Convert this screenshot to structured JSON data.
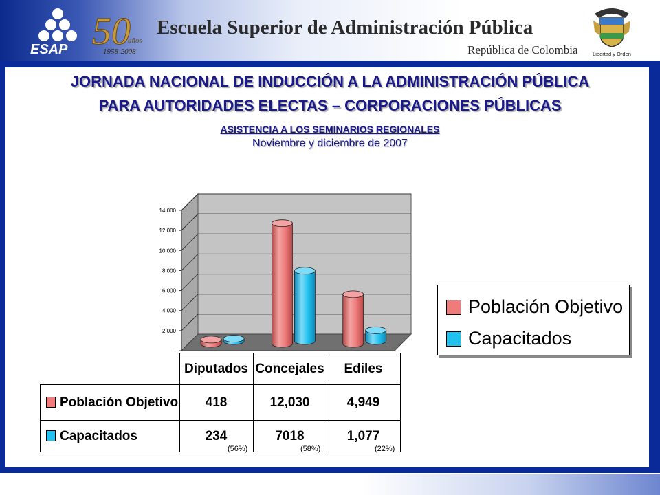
{
  "header": {
    "title": "Escuela Superior de Administración Pública",
    "subtitle": "República de Colombia",
    "logo_text": "ESAP",
    "logo_years": "1958-2008",
    "logo_anniversary": "50",
    "logo_word": "años",
    "seal_caption": "Libertad y Orden"
  },
  "slide": {
    "title_line1": "JORNADA NACIONAL DE INDUCCIÓN A LA ADMINISTRACIÓN PÚBLICA",
    "title_line2": "PARA AUTORIDADES ELECTAS – CORPORACIONES PÚBLICAS",
    "subtitle": "ASISTENCIA A LOS SEMINARIOS REGIONALES",
    "date": "Noviembre y diciembre de 2007"
  },
  "colors": {
    "poblacion": "#ef7b7b",
    "capacitados": "#22c2f0",
    "frame": "#0a2a9a",
    "title": "#1a1a8c"
  },
  "chart_data": {
    "type": "bar",
    "categories": [
      "Diputados",
      "Concejales",
      "Ediles"
    ],
    "series": [
      {
        "name": "Población Objetivo",
        "values": [
          418,
          12030,
          4949
        ]
      },
      {
        "name": "Capacitados",
        "values": [
          234,
          7018,
          1077
        ]
      }
    ],
    "ylim": [
      0,
      14000
    ],
    "yticks": [
      0,
      2000,
      4000,
      6000,
      8000,
      10000,
      12000,
      14000
    ],
    "ytick_labels": [
      "-",
      "2,000",
      "4,000",
      "6,000",
      "8,000",
      "10,000",
      "12,000",
      "14,000"
    ],
    "grid": true,
    "legend_position": "right"
  },
  "table": {
    "headers": [
      "Diputados",
      "Concejales",
      "Ediles"
    ],
    "rows": [
      {
        "label": "Población Objetivo",
        "cells": [
          "418",
          "12,030",
          "4,949"
        ]
      },
      {
        "label": "Capacitados",
        "cells": [
          "234",
          "7018",
          "1,077"
        ]
      }
    ],
    "percentages": [
      "(56%)",
      "(58%)",
      "(22%)"
    ]
  }
}
